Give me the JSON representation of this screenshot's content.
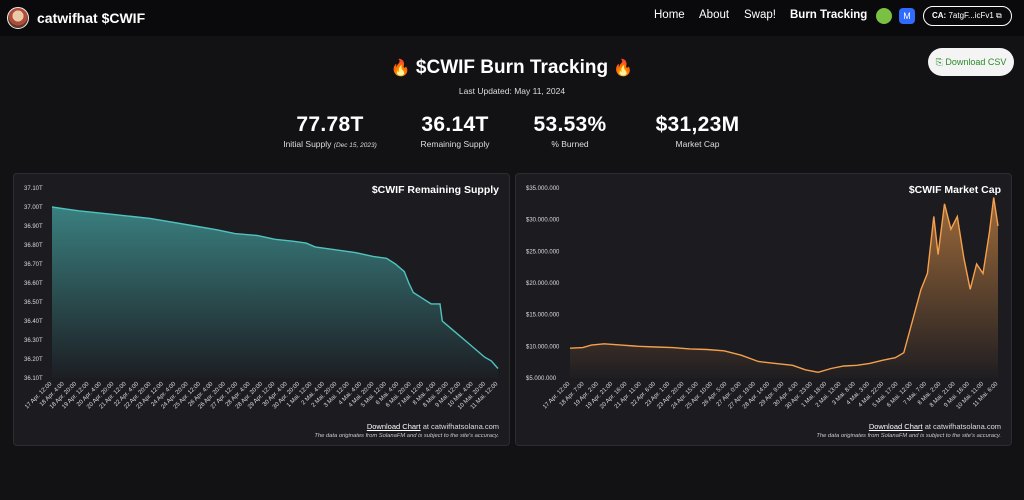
{
  "nav": {
    "brand": "catwifhat $CWIF",
    "links": [
      {
        "label": "Home",
        "active": false
      },
      {
        "label": "About",
        "active": false
      },
      {
        "label": "Swap!",
        "active": false
      },
      {
        "label": "Burn Tracking",
        "active": true
      }
    ],
    "ca_label": "CA:",
    "ca_value": "7atgF...icFv1",
    "copy_icon": "⧉"
  },
  "header": {
    "title": "$CWIF Burn Tracking",
    "fire_icon": "🔥",
    "updated": "Last Updated: May 11, 2024",
    "csv_icon": "⎘",
    "csv_label": "Download CSV"
  },
  "stats": [
    {
      "value": "77.78T",
      "label": "Initial Supply",
      "note": "(Dec 15, 2023)"
    },
    {
      "value": "36.14T",
      "label": "Remaining Supply",
      "note": ""
    },
    {
      "value": "53.53%",
      "label": "% Burned",
      "note": ""
    },
    {
      "value": "$31,23M",
      "label": "Market Cap",
      "note": ""
    }
  ],
  "footer": {
    "download": "Download Chart",
    "site": " at catwifhatsolana.com",
    "disclaimer": "The data originates from SolanaFM and is subject to the site's accuracy."
  },
  "chart_data": [
    {
      "type": "area",
      "title": "$CWIF Remaining Supply",
      "color": "#4fc3c0",
      "ylim": [
        36.1,
        37.1
      ],
      "yticks": [
        36.1,
        36.2,
        36.3,
        36.4,
        36.5,
        36.6,
        36.7,
        36.8,
        36.9,
        37.0,
        37.1
      ],
      "ytick_labels": [
        "36.10T",
        "36.20T",
        "36.30T",
        "36.40T",
        "36.50T",
        "36.60T",
        "36.70T",
        "36.80T",
        "36.90T",
        "37.00T",
        "37.10T"
      ],
      "xtick_labels": [
        "17 Apr. 12:00",
        "18 Apr. 4:00",
        "18 Apr. 20:00",
        "19 Apr. 12:00",
        "20 Apr. 4:00",
        "20 Apr. 20:00",
        "21 Apr. 12:00",
        "22 Apr. 4:00",
        "22 Apr. 20:00",
        "23 Apr. 12:00",
        "24 Apr. 4:00",
        "24 Apr. 20:00",
        "25 Apr. 12:00",
        "26 Apr. 4:00",
        "26 Apr. 20:00",
        "27 Apr. 12:00",
        "28 Apr. 4:00",
        "28 Apr. 20:00",
        "29 Apr. 12:00",
        "30 Apr. 4:00",
        "30 Apr. 20:00",
        "1 Mai. 12:00",
        "2 Mai. 4:00",
        "2 Mai. 20:00",
        "3 Mai. 12:00",
        "4 Mai. 4:00",
        "4 Mai. 20:00",
        "5 Mai. 12:00",
        "6 Mai. 4:00",
        "6 Mai. 20:00",
        "7 Mai. 12:00",
        "8 Mai. 4:00",
        "8 Mai. 20:00",
        "9 Mai. 12:00",
        "10 Mai. 4:00",
        "10 Mai. 20:00",
        "11 Mai. 12:00"
      ],
      "points": [
        [
          0,
          37.0
        ],
        [
          0.03,
          36.99
        ],
        [
          0.06,
          36.98
        ],
        [
          0.1,
          36.97
        ],
        [
          0.14,
          36.96
        ],
        [
          0.18,
          36.95
        ],
        [
          0.22,
          36.94
        ],
        [
          0.27,
          36.92
        ],
        [
          0.32,
          36.9
        ],
        [
          0.37,
          36.88
        ],
        [
          0.41,
          36.86
        ],
        [
          0.46,
          36.85
        ],
        [
          0.5,
          36.83
        ],
        [
          0.54,
          36.82
        ],
        [
          0.57,
          36.81
        ],
        [
          0.59,
          36.79
        ],
        [
          0.62,
          36.78
        ],
        [
          0.65,
          36.77
        ],
        [
          0.68,
          36.76
        ],
        [
          0.72,
          36.74
        ],
        [
          0.75,
          36.73
        ],
        [
          0.77,
          36.7
        ],
        [
          0.79,
          36.66
        ],
        [
          0.8,
          36.6
        ],
        [
          0.81,
          36.55
        ],
        [
          0.83,
          36.52
        ],
        [
          0.85,
          36.49
        ],
        [
          0.86,
          36.49
        ],
        [
          0.87,
          36.49
        ],
        [
          0.875,
          36.4
        ],
        [
          0.89,
          36.37
        ],
        [
          0.91,
          36.33
        ],
        [
          0.93,
          36.29
        ],
        [
          0.95,
          36.25
        ],
        [
          0.97,
          36.21
        ],
        [
          0.985,
          36.19
        ],
        [
          1.0,
          36.15
        ]
      ]
    },
    {
      "type": "area",
      "title": "$CWIF Market Cap",
      "color": "#f6a04d",
      "ylim": [
        5000000,
        35000000
      ],
      "yticks": [
        5000000,
        10000000,
        15000000,
        20000000,
        25000000,
        30000000,
        35000000
      ],
      "ytick_labels": [
        "$5.000.000",
        "$10.000.000",
        "$15.000.000",
        "$20.000.000",
        "$25.000.000",
        "$30.000.000",
        "$35.000.000"
      ],
      "xtick_labels": [
        "17 Apr. 12:00",
        "18 Apr. 7:00",
        "19 Apr. 2:00",
        "19 Apr. 21:00",
        "20 Apr. 16:00",
        "21 Apr. 11:00",
        "22 Apr. 6:00",
        "23 Apr. 1:00",
        "23 Apr. 20:00",
        "24 Apr. 15:00",
        "25 Apr. 10:00",
        "26 Apr. 5:00",
        "27 Apr. 0:00",
        "27 Apr. 19:00",
        "28 Apr. 14:00",
        "29 Apr. 9:00",
        "30 Apr. 4:00",
        "30 Apr. 23:00",
        "1 Mai. 18:00",
        "2 Mai. 13:00",
        "3 Mai. 8:00",
        "4 Mai. 3:00",
        "4 Mai. 22:00",
        "5 Mai. 17:00",
        "6 Mai. 12:00",
        "7 Mai. 7:00",
        "8 Mai. 2:00",
        "8 Mai. 21:00",
        "9 Mai. 16:00",
        "10 Mai. 11:00",
        "11 Mai. 6:00"
      ],
      "points": [
        [
          0,
          9700000
        ],
        [
          0.03,
          9800000
        ],
        [
          0.05,
          10200000
        ],
        [
          0.08,
          10400000
        ],
        [
          0.12,
          10200000
        ],
        [
          0.16,
          10000000
        ],
        [
          0.2,
          9900000
        ],
        [
          0.24,
          9800000
        ],
        [
          0.28,
          9600000
        ],
        [
          0.32,
          9500000
        ],
        [
          0.36,
          9300000
        ],
        [
          0.4,
          8600000
        ],
        [
          0.44,
          7600000
        ],
        [
          0.48,
          7300000
        ],
        [
          0.52,
          7000000
        ],
        [
          0.55,
          6300000
        ],
        [
          0.58,
          5900000
        ],
        [
          0.61,
          6500000
        ],
        [
          0.64,
          6900000
        ],
        [
          0.67,
          7000000
        ],
        [
          0.7,
          7300000
        ],
        [
          0.73,
          7800000
        ],
        [
          0.76,
          8200000
        ],
        [
          0.78,
          9000000
        ],
        [
          0.8,
          14000000
        ],
        [
          0.82,
          19000000
        ],
        [
          0.835,
          21500000
        ],
        [
          0.85,
          30500000
        ],
        [
          0.86,
          24500000
        ],
        [
          0.875,
          32500000
        ],
        [
          0.89,
          28500000
        ],
        [
          0.905,
          30500000
        ],
        [
          0.92,
          24000000
        ],
        [
          0.935,
          19000000
        ],
        [
          0.95,
          23000000
        ],
        [
          0.965,
          21500000
        ],
        [
          0.98,
          28000000
        ],
        [
          0.99,
          33500000
        ],
        [
          1.0,
          29000000
        ]
      ]
    }
  ]
}
